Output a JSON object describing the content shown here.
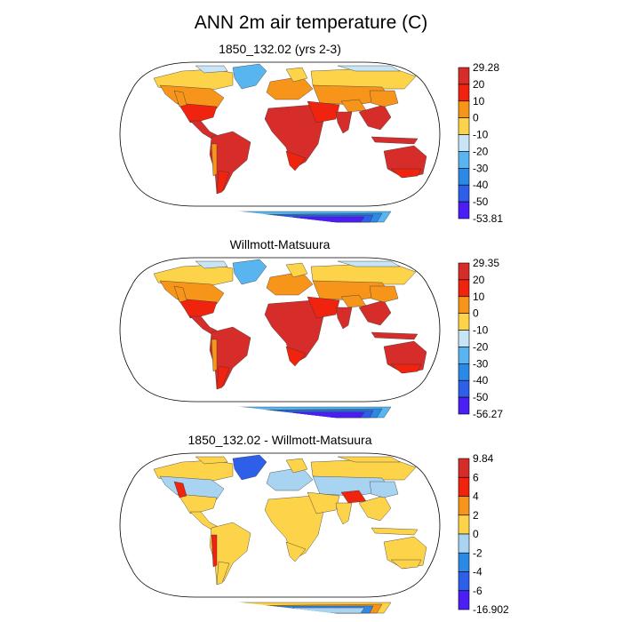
{
  "title": "ANN 2m air temperature (C)",
  "colors": {
    "ocean": "#ffffff",
    "outline": "#000000"
  },
  "chart_data": [
    {
      "type": "heatmap",
      "projection": "Robinson",
      "title": "1850_132.02 (yrs 2-3)",
      "field": "annual mean 2m air temperature",
      "units": "C",
      "data_min": -53.81,
      "data_max": 29.28,
      "colorbar_levels": [
        20,
        10,
        0,
        -10,
        -20,
        -30,
        -40,
        -50
      ],
      "colorbar_labels": [
        "29.28",
        "20",
        "10",
        "0",
        "-10",
        "-20",
        "-30",
        "-40",
        "-50",
        "-53.81"
      ],
      "colorbar_colors": [
        "#d62d2a",
        "#f0230f",
        "#f7951b",
        "#fdd34a",
        "#c8e4f7",
        "#58b5f0",
        "#2b8ae6",
        "#2d5fe8",
        "#4a1ef5"
      ],
      "regions": {
        "tropics": "#d62d2a",
        "subtropics": "#f0230f",
        "mid_lat": "#f7951b",
        "high_lat": "#fdd34a",
        "arctic": "#c8e4f7",
        "greenland": "#58b5f0",
        "mountains": "#f7951b",
        "ant_coast": "#58b5f0",
        "ant_mid": "#2b8ae6",
        "ant_inner": "#2d5fe8",
        "ant_core": "#4a1ef5"
      }
    },
    {
      "type": "heatmap",
      "projection": "Robinson",
      "title": "Willmott-Matsuura",
      "field": "annual mean 2m air temperature",
      "units": "C",
      "data_min": -56.27,
      "data_max": 29.35,
      "colorbar_levels": [
        20,
        10,
        0,
        -10,
        -20,
        -30,
        -40,
        -50
      ],
      "colorbar_labels": [
        "29.35",
        "20",
        "10",
        "0",
        "-10",
        "-20",
        "-30",
        "-40",
        "-50",
        "-56.27"
      ],
      "colorbar_colors": [
        "#d62d2a",
        "#f0230f",
        "#f7951b",
        "#fdd34a",
        "#c8e4f7",
        "#58b5f0",
        "#2b8ae6",
        "#2d5fe8",
        "#4a1ef5"
      ],
      "regions": {
        "tropics": "#d62d2a",
        "subtropics": "#f0230f",
        "mid_lat": "#f7951b",
        "high_lat": "#fdd34a",
        "arctic": "#c8e4f7",
        "greenland": "#58b5f0",
        "mountains": "#f7951b",
        "ant_coast": "#58b5f0",
        "ant_mid": "#2b8ae6",
        "ant_inner": "#2d5fe8",
        "ant_core": "#4a1ef5"
      }
    },
    {
      "type": "heatmap",
      "projection": "Robinson",
      "title": "1850_132.02 - Willmott-Matsuura",
      "field": "annual mean 2m air temperature difference",
      "units": "C",
      "data_min": -16.902,
      "data_max": 9.84,
      "colorbar_levels": [
        6,
        4,
        2,
        0,
        -2,
        -4,
        -6
      ],
      "colorbar_labels": [
        "9.84",
        "6",
        "4",
        "2",
        "0",
        "-2",
        "-4",
        "-6",
        "-16.902"
      ],
      "colorbar_colors": [
        "#d62d2a",
        "#f0230f",
        "#f7951b",
        "#fdd34a",
        "#a8d4f2",
        "#2b8ae6",
        "#2d5fe8",
        "#4a1ef5"
      ],
      "regions": {
        "tropics": "#fdd34a",
        "subtropics": "#fdd34a",
        "mid_lat": "#a8d4f2",
        "high_lat": "#fdd34a",
        "arctic": "#fdd34a",
        "greenland": "#2d5fe8",
        "mountains": "#f0230f",
        "ant_coast": "#fdd34a",
        "ant_mid": "#f7951b",
        "ant_inner": "#2b8ae6",
        "ant_core": "#a8d4f2"
      }
    }
  ]
}
